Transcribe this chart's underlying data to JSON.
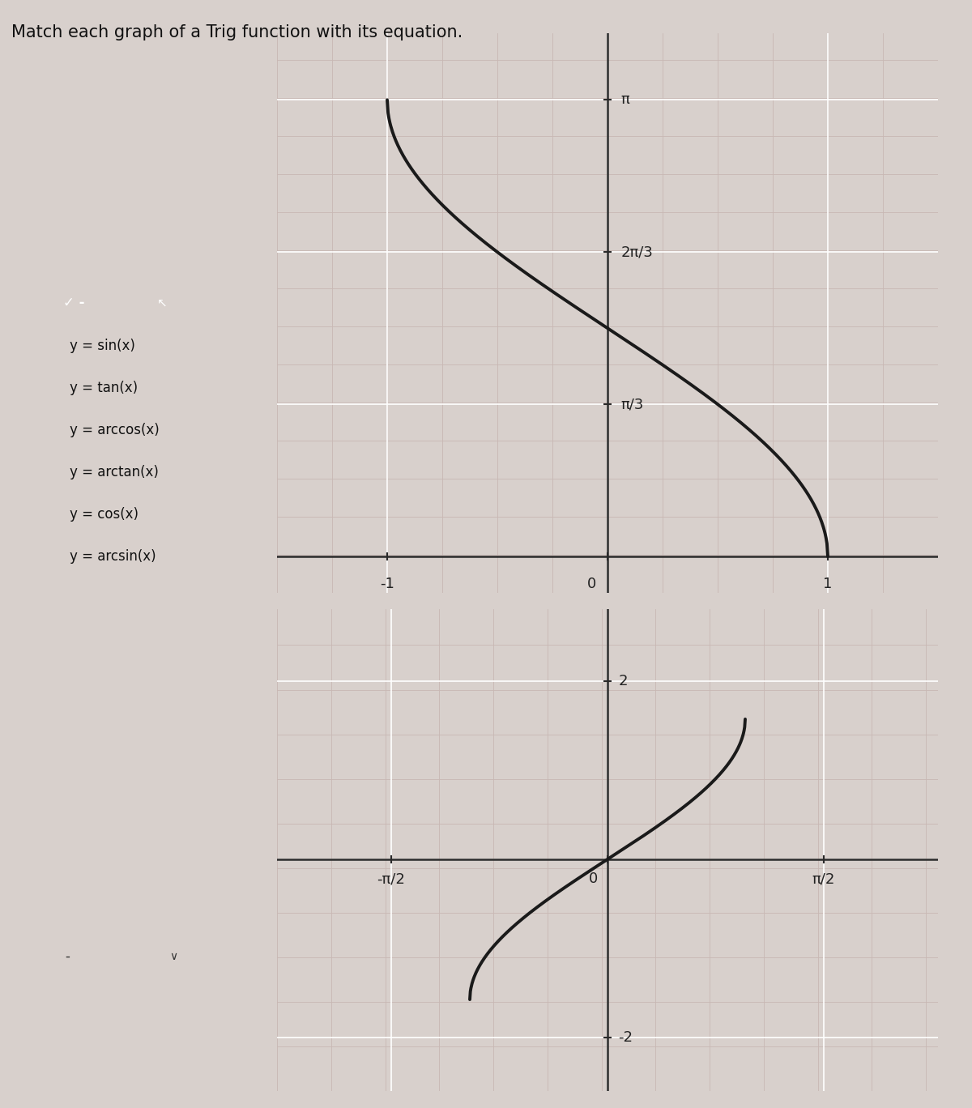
{
  "title": "Match each graph of a Trig function with its equation.",
  "title_fontsize": 15,
  "bg_color": "#d8d0cc",
  "graph_bg_color": "#e8e0dc",
  "grid_major_color": "#ffffff",
  "grid_minor_color": "#c8b8b4",
  "curve_color": "#1a1a1a",
  "curve_linewidth": 2.8,
  "top_graph": {
    "xlim": [
      -1.5,
      1.5
    ],
    "ylim": [
      -0.25,
      3.6
    ],
    "xticks": [
      -1,
      0,
      1
    ],
    "xtick_labels": [
      "-1",
      "0",
      "1"
    ],
    "yticks_vals": [
      1.0472,
      2.0944,
      3.14159
    ],
    "ytick_labels": [
      "π/3",
      "2π/3",
      "π"
    ]
  },
  "bottom_graph": {
    "xlim": [
      -2.4,
      2.4
    ],
    "ylim": [
      -2.6,
      2.8
    ],
    "xticks_vals": [
      -1.5708,
      0,
      1.5708
    ],
    "xtick_labels": [
      "-π/2",
      "0",
      "π/2"
    ],
    "yticks": [
      -2,
      2
    ],
    "ytick_labels": [
      "-2",
      "2"
    ]
  },
  "dropdown": {
    "items": [
      "y = sin(x)",
      "y = tan(x)",
      "y = arccos(x)",
      "y = arctan(x)",
      "y = cos(x)",
      "y = arcsin(x)"
    ],
    "highlight_color": "#5590cc",
    "bg_color": "#f0eeec",
    "border_color": "#999999",
    "text_color": "#111111",
    "selected_text_color": "#ffffff",
    "checkmark": "✓",
    "fontsize": 12
  },
  "dropdown2": {
    "bg_color": "#f0eeec",
    "border_color": "#999999",
    "text": "-",
    "fontsize": 12
  }
}
